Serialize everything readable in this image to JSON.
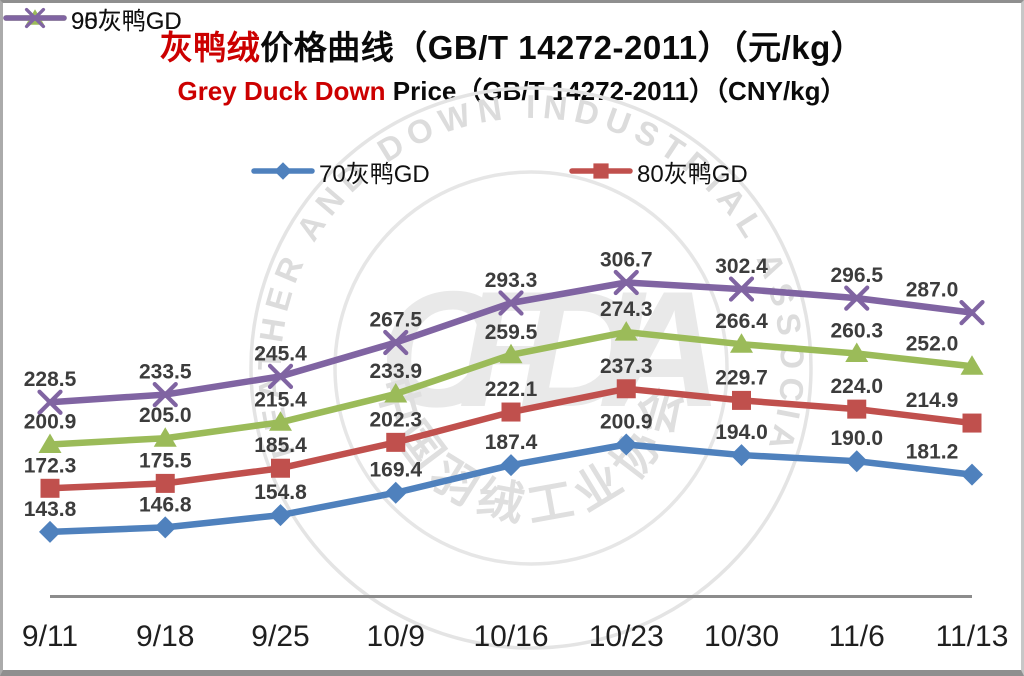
{
  "title": {
    "highlight": "灰鸭绒",
    "rest": "价格曲线（GB/T 14272-2011）（元/kg）",
    "highlight_color": "#cc0000"
  },
  "subtitle": {
    "highlight": "Grey Duck Down",
    "rest": " Price（GB/T 14272-2011）（CNY/kg）",
    "highlight_color": "#cc0000"
  },
  "watermark": {
    "arc_text": "FEATHER AND DOWN INDUSTRIAL ASSOCIATION",
    "acronym": "CFDIA",
    "cn_text": "中国羽绒工业协会"
  },
  "chart_data": {
    "type": "line",
    "title": "灰鸭绒价格曲线（GB/T 14272-2011）（元/kg）",
    "subtitle": "Grey Duck Down Price（GB/T 14272-2011）（CNY/kg）",
    "xlabel": "",
    "ylabel": "",
    "categories": [
      "9/11",
      "9/18",
      "9/25",
      "10/9",
      "10/16",
      "10/23",
      "10/30",
      "11/6",
      "11/13"
    ],
    "series": [
      {
        "name": "70灰鸭GD",
        "color": "#4F81BD",
        "marker": "diamond",
        "values": [
          143.8,
          146.8,
          154.8,
          169.4,
          187.4,
          200.9,
          194.0,
          190.0,
          181.2
        ]
      },
      {
        "name": "80灰鸭GD",
        "color": "#C0504D",
        "marker": "square",
        "values": [
          172.3,
          175.5,
          185.4,
          202.3,
          222.1,
          237.3,
          229.7,
          224.0,
          214.9
        ]
      },
      {
        "name": "90灰鸭GD",
        "color": "#9BBB59",
        "marker": "triangle",
        "values": [
          200.9,
          205.0,
          215.4,
          233.9,
          259.5,
          274.3,
          266.4,
          260.3,
          252.0
        ]
      },
      {
        "name": "95灰鸭GD",
        "color": "#8064A2",
        "marker": "x",
        "values": [
          228.5,
          233.5,
          245.4,
          267.5,
          293.3,
          306.7,
          302.4,
          296.5,
          287.0
        ]
      }
    ],
    "ylim": [
      100,
      420
    ],
    "grid": false,
    "legend_position": "top",
    "data_labels": true,
    "label_format": "0.0",
    "axis_color": "#8c8c8c",
    "label_color": "#3c3c3c"
  }
}
